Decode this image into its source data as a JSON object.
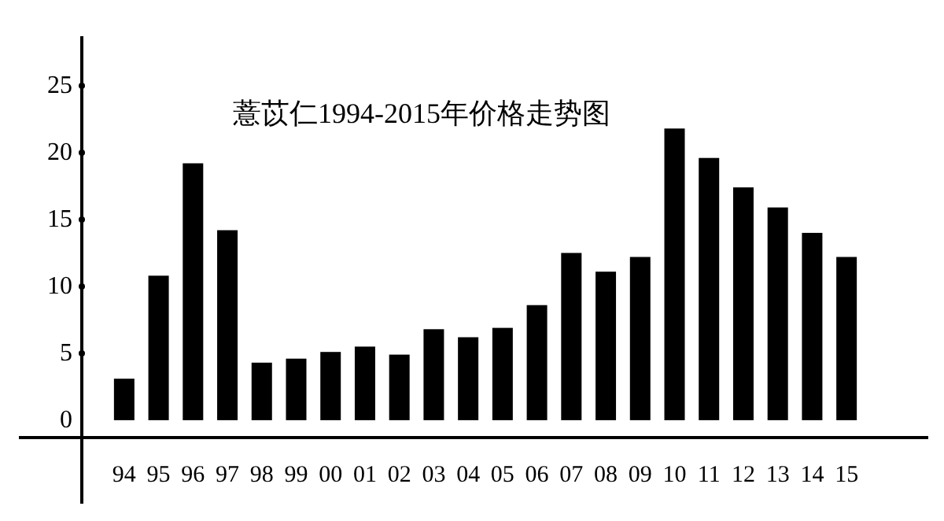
{
  "chart_data": {
    "type": "bar",
    "title": "薏苡仁1994-2015年价格走势图",
    "categories": [
      "94",
      "95",
      "96",
      "97",
      "98",
      "99",
      "00",
      "01",
      "02",
      "03",
      "04",
      "05",
      "06",
      "07",
      "08",
      "09",
      "10",
      "11",
      "12",
      "13",
      "14",
      "15"
    ],
    "values": [
      3.1,
      10.8,
      19.2,
      14.2,
      4.3,
      4.6,
      5.1,
      5.5,
      4.9,
      6.8,
      6.2,
      6.9,
      8.6,
      12.5,
      11.1,
      12.2,
      21.8,
      19.6,
      17.4,
      15.9,
      14.0,
      12.2
    ],
    "color": "#000000",
    "ylim": [
      -1.3,
      28.7
    ],
    "yticks": [
      0,
      5,
      10,
      15,
      20,
      25
    ],
    "grid": false
  }
}
